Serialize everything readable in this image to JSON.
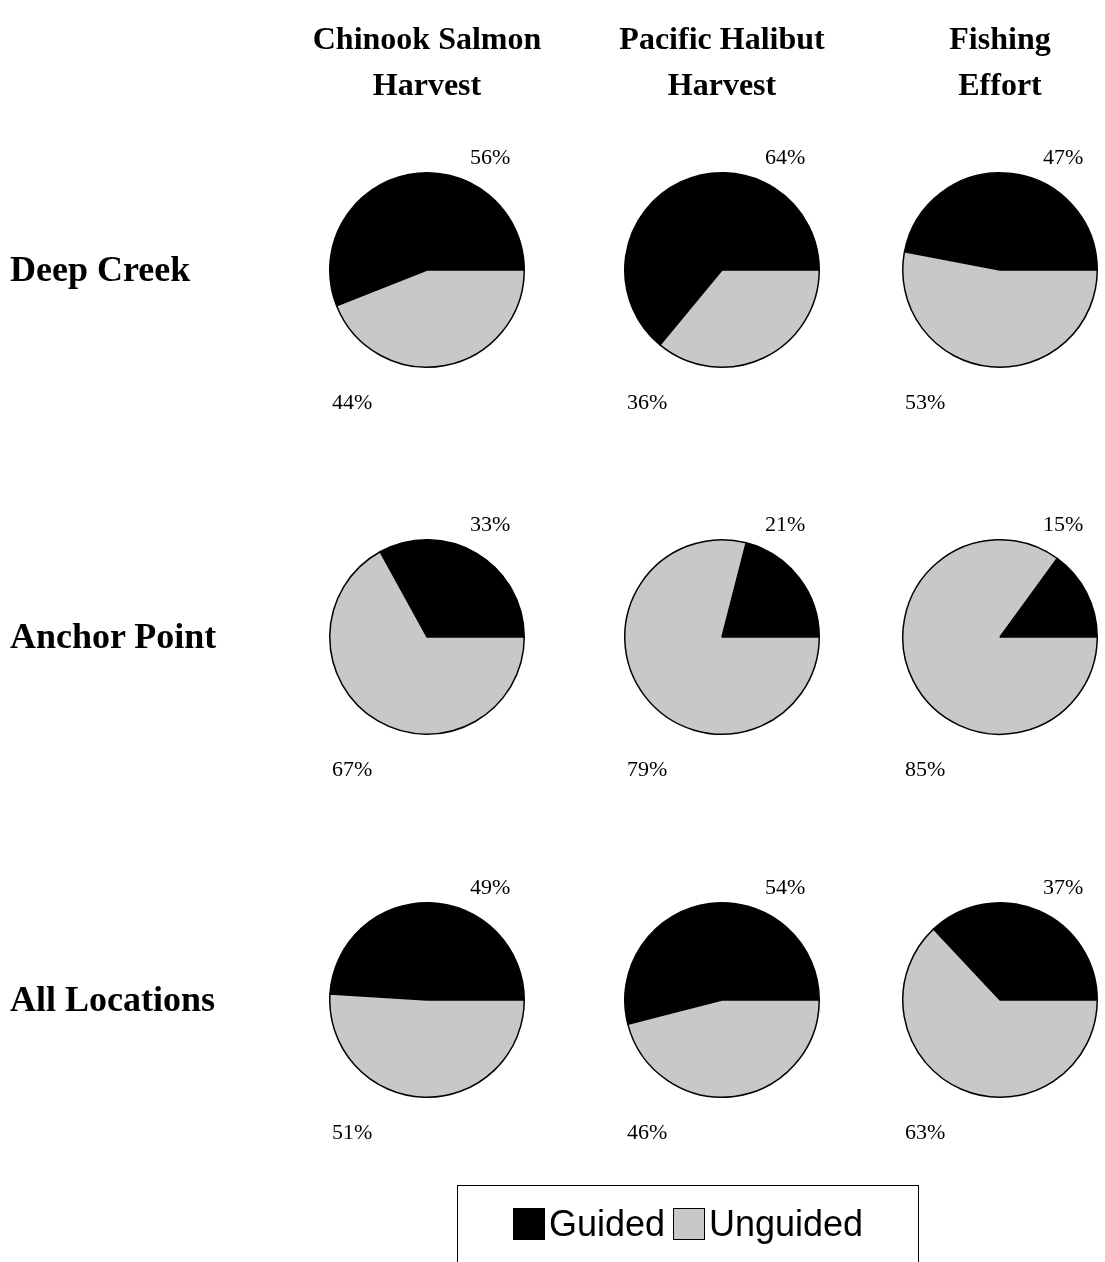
{
  "chart_data": [
    {
      "type": "pie",
      "title": "Chinook Salmon Harvest",
      "ylabel": "Deep Creek",
      "categories": [
        null,
        null
      ],
      "values": [
        56,
        44
      ],
      "value_labels": [
        "56%",
        "44%"
      ],
      "colors": [
        "#000000",
        "#c8c8c8"
      ]
    },
    {
      "type": "pie",
      "title": "Pacific Halibut Harvest",
      "categories": [
        null,
        null
      ],
      "values": [
        64,
        36
      ],
      "value_labels": [
        "64%",
        "36%"
      ],
      "colors": [
        "#000000",
        "#c8c8c8"
      ]
    },
    {
      "type": "pie",
      "title": "Fishing Effort",
      "categories": [
        null,
        null
      ],
      "values": [
        47,
        53
      ],
      "value_labels": [
        "47%",
        "53%"
      ],
      "colors": [
        "#000000",
        "#c8c8c8"
      ]
    },
    {
      "type": "pie",
      "ylabel": "Anchor Point",
      "categories": [
        null,
        null
      ],
      "values": [
        33,
        67
      ],
      "value_labels": [
        "33%",
        "67%"
      ],
      "colors": [
        "#000000",
        "#c8c8c8"
      ]
    },
    {
      "type": "pie",
      "categories": [
        null,
        null
      ],
      "values": [
        21,
        79
      ],
      "value_labels": [
        "21%",
        "79%"
      ],
      "colors": [
        "#000000",
        "#c8c8c8"
      ]
    },
    {
      "type": "pie",
      "categories": [
        null,
        null
      ],
      "values": [
        15,
        85
      ],
      "value_labels": [
        "15%",
        "85%"
      ],
      "colors": [
        "#000000",
        "#c8c8c8"
      ]
    },
    {
      "type": "pie",
      "ylabel": "All Locations",
      "categories": [
        null,
        null
      ],
      "values": [
        49,
        51
      ],
      "value_labels": [
        "49%",
        "51%"
      ],
      "colors": [
        "#000000",
        "#c8c8c8"
      ]
    },
    {
      "type": "pie",
      "legend": "bottom",
      "categories": [
        "Guided",
        "Unguided"
      ],
      "values": [
        54,
        46
      ],
      "value_labels": [
        "54%",
        "46%"
      ],
      "colors": [
        "#000000",
        "#c8c8c8"
      ]
    },
    {
      "type": "pie",
      "categories": [
        null,
        null
      ],
      "values": [
        37,
        63
      ],
      "value_labels": [
        "37%",
        "63%"
      ],
      "colors": [
        "#000000",
        "#c8c8c8"
      ]
    }
  ]
}
